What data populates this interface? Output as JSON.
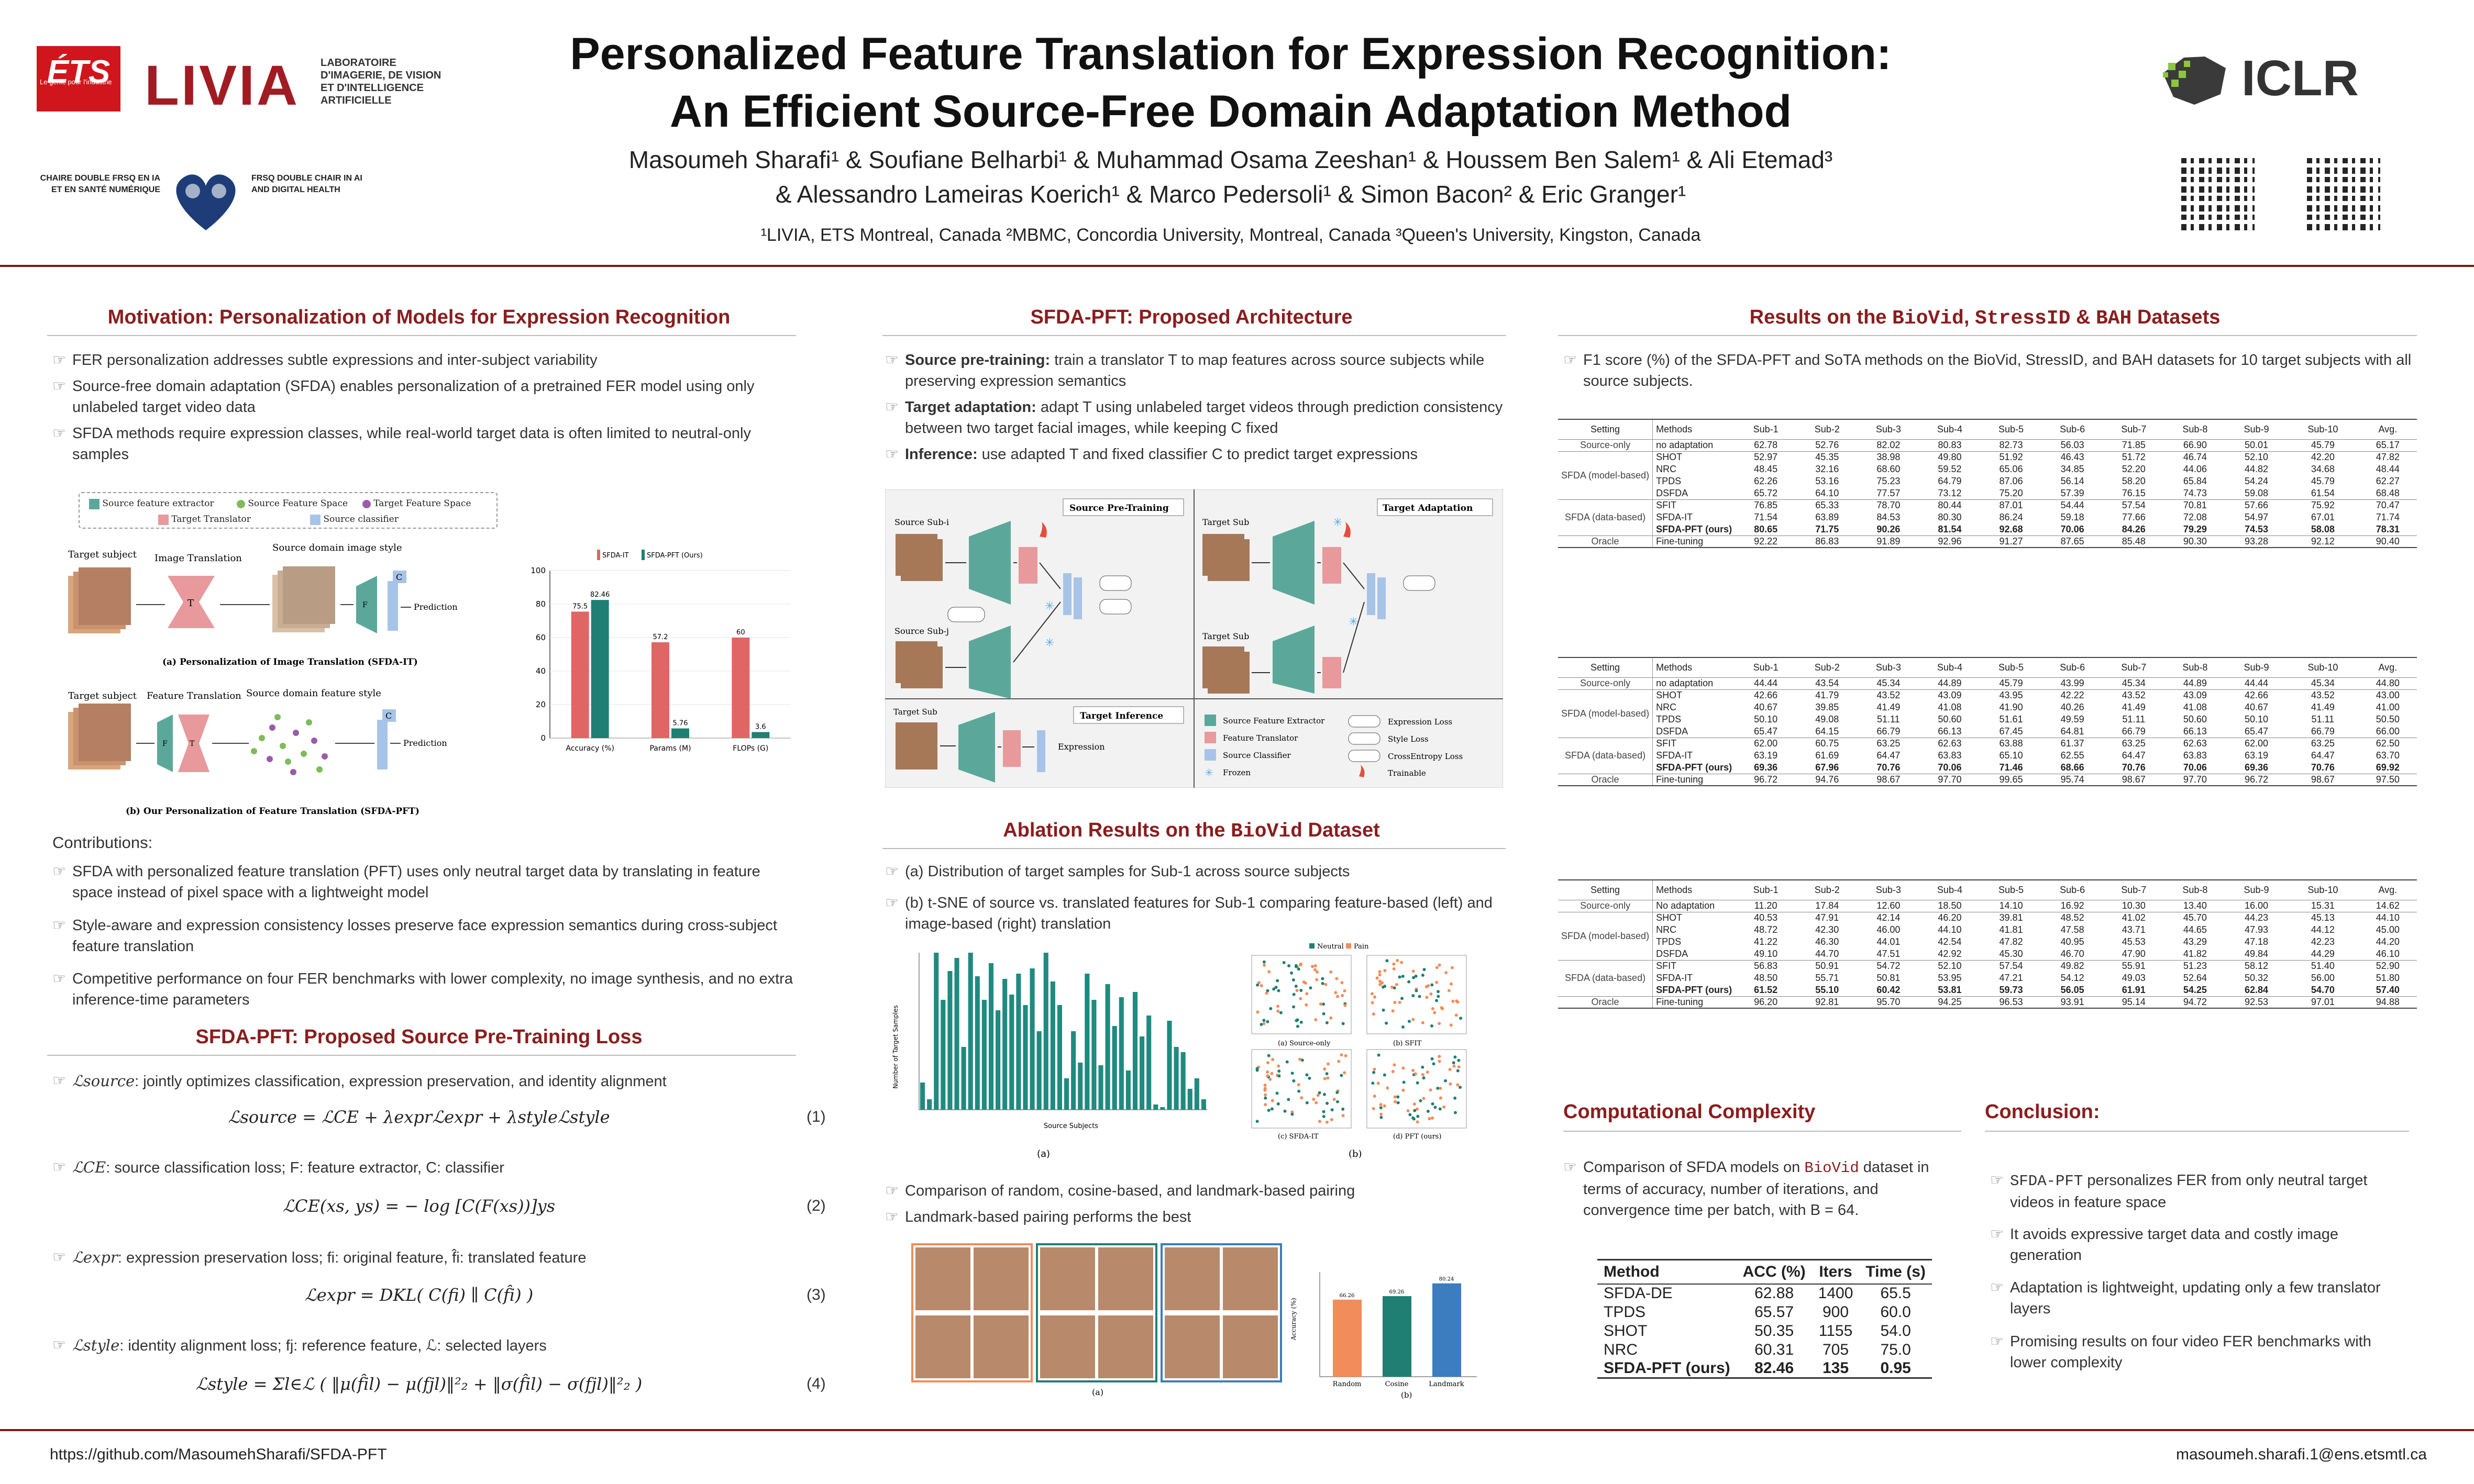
{
  "header": {
    "title_line1": "Personalized Feature Translation for Expression Recognition:",
    "title_line2": "An Efficient Source-Free Domain Adaptation Method",
    "authors_line1": "Masoumeh Sharafi¹ & Soufiane Belharbi¹ & Muhammad Osama Zeeshan¹ & Houssem Ben Salem¹ & Ali Etemad³",
    "authors_line2": "& Alessandro Lameiras Koerich¹ & Marco Pedersoli¹ & Simon Bacon² & Eric Granger¹",
    "affiliations": "¹LIVIA, ETS Montreal, Canada   ²MBMC, Concordia University, Montreal, Canada   ³Queen's University, Kingston, Canada",
    "ets_logo": "ÉTS",
    "ets_tagline": "Le génie pour l'industrie",
    "livia_logo": "LIVIA",
    "livia_text": "LABORATOIRE D'IMAGERIE, DE VISION ET D'INTELLIGENCE ARTIFICIELLE",
    "chaire_text": "CHAIRE DOUBLE FRSQ EN IA ET EN SANTÉ NUMÉRIQUE",
    "frsq_text": "FRSQ DOUBLE CHAIR IN AI AND DIGITAL HEALTH",
    "iclr_logo": "ICLR"
  },
  "motivation": {
    "title": "Motivation: Personalization of Models for Expression Recognition",
    "bullets": [
      "FER personalization addresses subtle expressions and inter-subject variability",
      "Source-free domain adaptation (SFDA) enables personalization of a pretrained FER model using only unlabeled target video data",
      "SFDA methods require expression classes, while real-world target data is often limited to neutral-only samples"
    ],
    "legend": [
      "Source feature extractor",
      "Source Feature Space",
      "Target Feature Space",
      "Target Translator",
      "Source classifier"
    ],
    "fig_a_caption": "(a) Personalization of Image Translation (SFDA-IT)",
    "fig_b_caption": "(b) Our Personalization of Feature Translation (SFDA-PFT)",
    "fig_labels": {
      "target_subject": "Target subject",
      "image_translation": "Image Translation",
      "source_domain_image_style": "Source domain image style",
      "prediction": "Prediction",
      "feature_translation": "Feature Translation",
      "source_domain_feature_style": "Source domain feature style",
      "T": "T",
      "F": "F",
      "C": "C"
    },
    "contrib_title": "Contributions:",
    "contributions": [
      "SFDA with personalized feature translation (PFT) uses only neutral target data by translating in feature space instead of pixel space with a lightweight model",
      "Style-aware and expression consistency losses preserve face expression semantics during cross-subject feature translation",
      "Competitive performance on four FER benchmarks with lower complexity, no image synthesis, and no extra inference-time parameters"
    ]
  },
  "chart_data": {
    "type": "bar",
    "categories": [
      "Accuracy (%)",
      "Params (M)",
      "FLOPs (G)"
    ],
    "series": [
      {
        "name": "SFDA-IT",
        "values": [
          75.5,
          57.2,
          60
        ]
      },
      {
        "name": "SFDA-PFT (Ours)",
        "values": [
          82.46,
          5.76,
          3.6
        ]
      }
    ],
    "data_labels": [
      [
        "75.5",
        "57.2",
        "60"
      ],
      [
        "82.46",
        "5.76",
        "3.6"
      ]
    ],
    "ylim": [
      0,
      100
    ],
    "yticks": [
      "0",
      "20",
      "40",
      "60",
      "80",
      "100"
    ],
    "colors": [
      "#e06666",
      "#1f7f73"
    ]
  },
  "pretrain": {
    "title": "SFDA-PFT: Proposed Source Pre-Training Loss",
    "items": [
      {
        "lead": "ℒsource",
        "text": ": jointly optimizes classification, expression preservation, and identity alignment",
        "eq": "ℒsource = ℒCE + λexprℒexpr + λstyleℒstyle",
        "num": "(1)"
      },
      {
        "lead": "ℒCE",
        "text": ": source classification loss; F: feature extractor, C: classifier",
        "eq": "ℒCE(xs, ys) = − log [C(F(xs))]ys",
        "num": "(2)"
      },
      {
        "lead": "ℒexpr",
        "text": ": expression preservation loss; fi: original feature, f̂i: translated feature",
        "eq": "ℒexpr = DKL( C(fi) ∥ C(f̂i) )",
        "num": "(3)"
      },
      {
        "lead": "ℒstyle",
        "text": ": identity alignment loss; fj: reference feature, ℒ: selected layers",
        "eq": "ℒstyle = Σl∈ℒ ( ‖μ(f̂il) − μ(fjl)‖²₂ + ‖σ(f̂il) − σ(fjl)‖²₂ )",
        "num": "(4)"
      }
    ]
  },
  "architecture": {
    "title": "SFDA-PFT: Proposed Architecture",
    "items": [
      {
        "lead": "Source pre-training:",
        "text": " train a translator T to map features across source subjects while preserving expression semantics"
      },
      {
        "lead": "Target adaptation:",
        "text": " adapt T using unlabeled target videos through prediction consistency between two target facial images, while keeping C fixed"
      },
      {
        "lead": "Inference:",
        "text": " use adapted T and fixed classifier C to predict target expressions"
      }
    ],
    "panels": {
      "pretrain": "Source Pre-Training",
      "adapt": "Target Adaptation",
      "infer": "Target Inference",
      "source_i": "Source Sub-i",
      "source_j": "Source Sub-j",
      "target_sub": "Target Sub",
      "expression": "Expression"
    },
    "legend": [
      "Source Feature Extractor",
      "Feature Translator",
      "Source Classifier",
      "Frozen",
      "Expression Loss",
      "Style Loss",
      "CrossEntropy Loss",
      "Trainable"
    ]
  },
  "ablation": {
    "title_prefix": "Ablation Results on the ",
    "title_dataset": "BioVid",
    "title_suffix": " Dataset",
    "bullets": [
      "(a) Distribution of target samples for Sub-1 across source subjects",
      "(b) t-SNE of source vs. translated features for Sub-1 comparing feature-based (left) and image-based (right) translation"
    ],
    "fig_a": "(a)",
    "fig_b": "(b)",
    "hist_xlabel": "Source Subjects",
    "hist_ylabel": "Number of Target Samples",
    "tsne_legend": [
      "Neutral",
      "Pain"
    ],
    "tsne_captions": [
      "(a) Source-only",
      "(b) SFIT",
      "(c) SFDA-IT",
      "(d) PFT (ours)"
    ],
    "bullets2": [
      "Comparison of random, cosine-based, and landmark-based pairing",
      "Landmark-based pairing performs the best"
    ],
    "pair_labels": [
      "Random",
      "Cosine",
      "Landmark"
    ],
    "pair_values": [
      66.26,
      69.26,
      80.24
    ],
    "pair_ylabel": "Accuracy (%)",
    "pair_caption_a": "(a)",
    "pair_caption_b": "(b)"
  },
  "results": {
    "title_prefix": "Results on the ",
    "d1": "BioVid",
    "d2": "StressID",
    "d3": "BAH",
    "title_suffix": " Datasets",
    "caption": "F1 score (%) of the SFDA-PFT and SoTA methods on the BioVid, StressID, and BAH datasets for 10 target subjects with all source subjects.",
    "columns": [
      "Setting",
      "Methods",
      "Sub-1",
      "Sub-2",
      "Sub-3",
      "Sub-4",
      "Sub-5",
      "Sub-6",
      "Sub-7",
      "Sub-8",
      "Sub-9",
      "Sub-10",
      "Avg."
    ],
    "tables": [
      {
        "groups": [
          {
            "setting": "Source-only",
            "rows": [
              [
                "no adaptation",
                "62.78",
                "52.76",
                "82.02",
                "80.83",
                "82.73",
                "56.03",
                "71.85",
                "66.90",
                "50.01",
                "45.79",
                "65.17"
              ]
            ]
          },
          {
            "setting": "SFDA (model-based)",
            "rows": [
              [
                "SHOT",
                "52.97",
                "45.35",
                "38.98",
                "49.80",
                "51.92",
                "46.43",
                "51.72",
                "46.74",
                "52.10",
                "42.20",
                "47.82"
              ],
              [
                "NRC",
                "48.45",
                "32.16",
                "68.60",
                "59.52",
                "65.06",
                "34.85",
                "52.20",
                "44.06",
                "44.82",
                "34.68",
                "48.44"
              ],
              [
                "TPDS",
                "62.26",
                "53.16",
                "75.23",
                "64.79",
                "87.06",
                "56.14",
                "58.20",
                "65.84",
                "54.24",
                "45.79",
                "62.27"
              ],
              [
                "DSFDA",
                "65.72",
                "64.10",
                "77.57",
                "73.12",
                "75.20",
                "57.39",
                "76.15",
                "74.73",
                "59.08",
                "61.54",
                "68.48"
              ]
            ]
          },
          {
            "setting": "SFDA (data-based)",
            "rows": [
              [
                "SFIT",
                "76.85",
                "65.33",
                "78.70",
                "80.44",
                "87.01",
                "54.44",
                "57.54",
                "70.81",
                "57.66",
                "75.92",
                "70.47"
              ],
              [
                "SFDA-IT",
                "71.54",
                "63.89",
                "84.53",
                "80.30",
                "86.24",
                "59.18",
                "77.66",
                "72.08",
                "54.97",
                "67.01",
                "71.74"
              ],
              [
                "SFDA-PFT (ours)",
                "80.65",
                "71.75",
                "90.26",
                "81.54",
                "92.68",
                "70.06",
                "84.26",
                "79.29",
                "74.53",
                "58.08",
                "78.31"
              ]
            ]
          },
          {
            "setting": "Oracle",
            "rows": [
              [
                "Fine-tuning",
                "92.22",
                "86.83",
                "91.89",
                "92.96",
                "91.27",
                "87.65",
                "85.48",
                "90.30",
                "93.28",
                "92.12",
                "90.40"
              ]
            ]
          }
        ]
      },
      {
        "groups": [
          {
            "setting": "Source-only",
            "rows": [
              [
                "no adaptation",
                "44.44",
                "43.54",
                "45.34",
                "44.89",
                "45.79",
                "43.99",
                "45.34",
                "44.89",
                "44.44",
                "45.34",
                "44.80"
              ]
            ]
          },
          {
            "setting": "SFDA (model-based)",
            "rows": [
              [
                "SHOT",
                "42.66",
                "41.79",
                "43.52",
                "43.09",
                "43.95",
                "42.22",
                "43.52",
                "43.09",
                "42.66",
                "43.52",
                "43.00"
              ],
              [
                "NRC",
                "40.67",
                "39.85",
                "41.49",
                "41.08",
                "41.90",
                "40.26",
                "41.49",
                "41.08",
                "40.67",
                "41.49",
                "41.00"
              ],
              [
                "TPDS",
                "50.10",
                "49.08",
                "51.11",
                "50.60",
                "51.61",
                "49.59",
                "51.11",
                "50.60",
                "50.10",
                "51.11",
                "50.50"
              ],
              [
                "DSFDA",
                "65.47",
                "64.15",
                "66.79",
                "66.13",
                "67.45",
                "64.81",
                "66.79",
                "66.13",
                "65.47",
                "66.79",
                "66.00"
              ]
            ]
          },
          {
            "setting": "SFDA (data-based)",
            "rows": [
              [
                "SFIT",
                "62.00",
                "60.75",
                "63.25",
                "62.63",
                "63.88",
                "61.37",
                "63.25",
                "62.63",
                "62.00",
                "63.25",
                "62.50"
              ],
              [
                "SFDA-IT",
                "63.19",
                "61.69",
                "64.47",
                "63.83",
                "65.10",
                "62.55",
                "64.47",
                "63.83",
                "63.19",
                "64.47",
                "63.70"
              ],
              [
                "SFDA-PFT (ours)",
                "69.36",
                "67.96",
                "70.76",
                "70.06",
                "71.46",
                "68.66",
                "70.76",
                "70.06",
                "69.36",
                "70.76",
                "69.92"
              ]
            ]
          },
          {
            "setting": "Oracle",
            "rows": [
              [
                "Fine-tuning",
                "96.72",
                "94.76",
                "98.67",
                "97.70",
                "99.65",
                "95.74",
                "98.67",
                "97.70",
                "96.72",
                "98.67",
                "97.50"
              ]
            ]
          }
        ]
      },
      {
        "groups": [
          {
            "setting": "Source-only",
            "rows": [
              [
                "No adaptation",
                "11.20",
                "17.84",
                "12.60",
                "18.50",
                "14.10",
                "16.92",
                "10.30",
                "13.40",
                "16.00",
                "15.31",
                "14.62"
              ]
            ]
          },
          {
            "setting": "SFDA (model-based)",
            "rows": [
              [
                "SHOT",
                "40.53",
                "47.91",
                "42.14",
                "46.20",
                "39.81",
                "48.52",
                "41.02",
                "45.70",
                "44.23",
                "45.13",
                "44.10"
              ],
              [
                "NRC",
                "48.72",
                "42.30",
                "46.00",
                "44.10",
                "41.81",
                "47.58",
                "43.71",
                "44.65",
                "47.93",
                "44.12",
                "45.00"
              ],
              [
                "TPDS",
                "41.22",
                "46.30",
                "44.01",
                "42.54",
                "47.82",
                "40.95",
                "45.53",
                "43.29",
                "47.18",
                "42.23",
                "44.20"
              ],
              [
                "DSFDA",
                "49.10",
                "44.70",
                "47.51",
                "42.92",
                "45.30",
                "46.70",
                "47.90",
                "41.82",
                "49.84",
                "44.29",
                "46.10"
              ]
            ]
          },
          {
            "setting": "SFDA (data-based)",
            "rows": [
              [
                "SFIT",
                "56.83",
                "50.91",
                "54.72",
                "52.10",
                "57.54",
                "49.82",
                "55.91",
                "51.23",
                "58.12",
                "51.40",
                "52.90"
              ],
              [
                "SFDA-IT",
                "48.50",
                "55.71",
                "50.81",
                "53.95",
                "47.21",
                "54.12",
                "49.03",
                "52.64",
                "50.32",
                "56.00",
                "51.80"
              ],
              [
                "SFDA-PFT (ours)",
                "61.52",
                "55.10",
                "60.42",
                "53.81",
                "59.73",
                "56.05",
                "61.91",
                "54.25",
                "62.84",
                "54.70",
                "57.40"
              ]
            ]
          },
          {
            "setting": "Oracle",
            "rows": [
              [
                "Fine-tuning",
                "96.20",
                "92.81",
                "95.70",
                "94.25",
                "96.53",
                "93.91",
                "95.14",
                "94.72",
                "92.53",
                "97.01",
                "94.88"
              ]
            ]
          }
        ]
      }
    ]
  },
  "complexity": {
    "title": "Computational Complexity",
    "text_prefix": "Comparison of SFDA models on ",
    "text_dataset": "BioVid",
    "text_suffix": " dataset in terms of accuracy, number of iterations, and convergence time per batch, with B = 64.",
    "columns": [
      "Method",
      "ACC (%)",
      "Iters",
      "Time (s)"
    ],
    "rows": [
      [
        "SFDA-DE",
        "62.88",
        "1400",
        "65.5"
      ],
      [
        "TPDS",
        "65.57",
        "900",
        "60.0"
      ],
      [
        "SHOT",
        "50.35",
        "1155",
        "54.0"
      ],
      [
        "NRC",
        "60.31",
        "705",
        "75.0"
      ],
      [
        "SFDA-PFT (ours)",
        "82.46",
        "135",
        "0.95"
      ]
    ]
  },
  "conclusion": {
    "title": "Conclusion:",
    "bullets": [
      {
        "mono": "SFDA-PFT",
        "text": " personalizes FER from only neutral target videos in feature space"
      },
      {
        "mono": "",
        "text": "It avoids expressive target data and costly image generation"
      },
      {
        "mono": "",
        "text": "Adaptation is lightweight, updating only a few translator layers"
      },
      {
        "mono": "",
        "text": "Promising results on four video FER benchmarks with lower complexity"
      }
    ]
  },
  "footer": {
    "url": "https://github.com/MasoumehSharafi/SFDA-PFT",
    "email": "masoumeh.sharafi.1@ens.etsmtl.ca"
  }
}
